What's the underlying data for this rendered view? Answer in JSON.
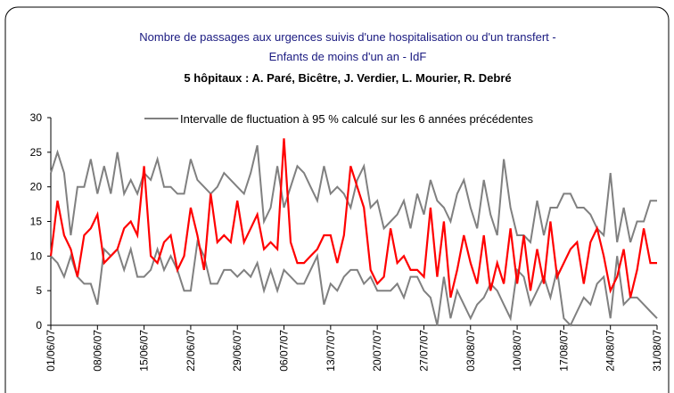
{
  "chart_data": {
    "type": "line",
    "title": [
      "Nombre de passages aux urgences suivis d'une hospitalisation ou d'un transfert -",
      "Enfants de moins d'un an - IdF"
    ],
    "subtitle": "5 hôpitaux : A. Paré, Bicêtre, J. Verdier, L. Mourier, R. Debré",
    "categories": [
      "01/06/07",
      null,
      null,
      null,
      null,
      null,
      null,
      "08/06/07",
      null,
      null,
      null,
      null,
      null,
      null,
      "15/06/07",
      null,
      null,
      null,
      null,
      null,
      null,
      "22/06/07",
      null,
      null,
      null,
      null,
      null,
      null,
      "29/06/07",
      null,
      null,
      null,
      null,
      null,
      null,
      "06/07/07",
      null,
      null,
      null,
      null,
      null,
      null,
      "13/07/07",
      null,
      null,
      null,
      null,
      null,
      null,
      "20/07/07",
      null,
      null,
      null,
      null,
      null,
      null,
      "27/07/07",
      null,
      null,
      null,
      null,
      null,
      null,
      "03/08/07",
      null,
      null,
      null,
      null,
      null,
      null,
      "10/08/07",
      null,
      null,
      null,
      null,
      null,
      null,
      "17/08/07",
      null,
      null,
      null,
      null,
      null,
      null,
      "24/08/07",
      null,
      null,
      null,
      null,
      null,
      null,
      "31/08/07"
    ],
    "ylim": [
      0,
      30
    ],
    "yticks": [
      0,
      5,
      10,
      15,
      20,
      25,
      30
    ],
    "series": [
      {
        "name": "Intervalle de fluctuation à 95 % calculé sur les 6 années précédentes",
        "color": "#808080",
        "values": [
          22,
          25,
          22,
          13,
          20,
          20,
          24,
          19,
          23,
          19,
          25,
          19,
          21,
          19,
          22,
          21,
          24,
          20,
          20,
          19,
          19,
          24,
          21,
          20,
          19,
          20,
          22,
          21,
          20,
          19,
          22,
          26,
          15,
          17,
          23,
          17,
          20,
          23,
          22,
          20,
          18,
          23,
          19,
          20,
          19,
          17,
          21,
          23,
          17,
          18,
          14,
          15,
          16,
          18,
          14,
          19,
          16,
          21,
          18,
          17,
          15,
          19,
          21,
          17,
          14,
          21,
          16,
          13,
          24,
          17,
          13,
          13,
          12,
          18,
          13,
          17,
          17,
          19,
          19,
          17,
          17,
          16,
          14,
          13,
          22,
          12,
          17,
          12,
          15,
          15,
          18,
          18
        ]
      },
      {
        "color": "#808080",
        "values": [
          10,
          9,
          7,
          10,
          7,
          6,
          6,
          3,
          11,
          10,
          11,
          8,
          11,
          7,
          7,
          8,
          11,
          8,
          10,
          8,
          5,
          5,
          12,
          10,
          6,
          6,
          8,
          8,
          7,
          8,
          7,
          9,
          5,
          8,
          5,
          8,
          7,
          6,
          6,
          8,
          10,
          3,
          6,
          5,
          7,
          8,
          8,
          6,
          7,
          5,
          5,
          5,
          6,
          4,
          7,
          7,
          5,
          4,
          0,
          7,
          1,
          5,
          3,
          1,
          3,
          4,
          6,
          5,
          3,
          1,
          8,
          7,
          3,
          5,
          7,
          4,
          8,
          1,
          0,
          2,
          4,
          3,
          6,
          7,
          1,
          10,
          3,
          4,
          4,
          3,
          2,
          1
        ]
      },
      {
        "color": "#ff0000",
        "values": [
          10,
          18,
          13,
          11,
          7,
          13,
          14,
          16,
          9,
          10,
          11,
          14,
          15,
          13,
          23,
          10,
          9,
          12,
          13,
          8,
          10,
          17,
          13,
          8,
          19,
          12,
          13,
          12,
          18,
          12,
          14,
          16,
          11,
          12,
          11,
          27,
          12,
          9,
          9,
          10,
          11,
          13,
          13,
          9,
          13,
          23,
          20,
          17,
          8,
          6,
          7,
          14,
          9,
          10,
          8,
          8,
          7,
          17,
          7,
          15,
          4,
          8,
          13,
          9,
          6,
          13,
          5,
          9,
          6,
          14,
          6,
          13,
          5,
          11,
          6,
          15,
          7,
          9,
          11,
          12,
          6,
          12,
          14,
          10,
          5,
          7,
          11,
          4,
          8,
          14,
          9,
          9
        ]
      }
    ]
  }
}
